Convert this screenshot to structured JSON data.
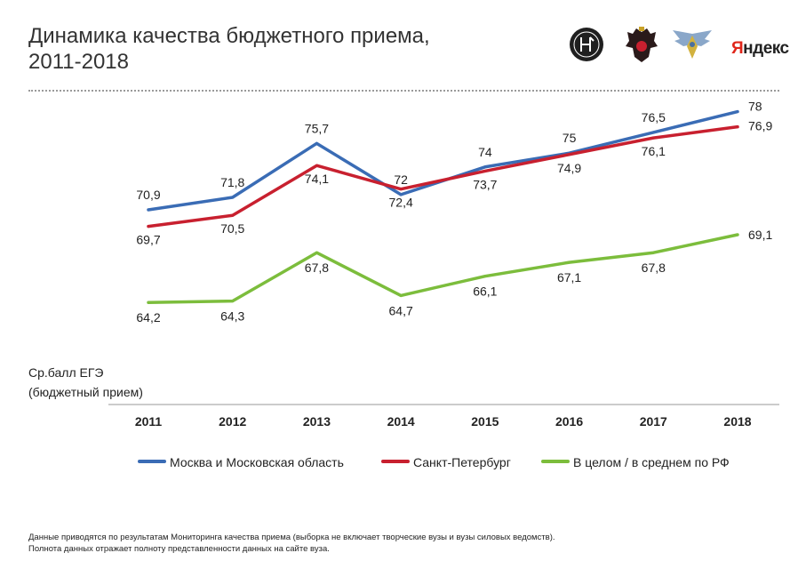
{
  "header": {
    "title_line1": "Динамика качества бюджетного приема,",
    "title_line2": "2011-2018",
    "logos": [
      {
        "name": "hse-logo",
        "icon": "circular-emblem-icon"
      },
      {
        "name": "minobrnauki-logo",
        "icon": "double-headed-eagle-icon"
      },
      {
        "name": "rosobrnadzor-logo",
        "icon": "winged-emblem-icon"
      },
      {
        "name": "yandex-logo",
        "text_first": "Я",
        "text_rest": "ндекс"
      }
    ]
  },
  "y_label_line1": "Ср.балл ЕГЭ",
  "y_label_line2": "(бюджетный прием)",
  "footnote_line1": "Данные приводятся по результатам Мониторинга качества приема (выборка не включает творческие вузы и вузы силовых ведомств).",
  "footnote_line2": "Полнота данных отражает полноту представленности данных на сайте вуза.",
  "chart_data": {
    "type": "line",
    "title": "Динамика качества бюджетного приема, 2011-2018",
    "ylabel": "Ср.балл ЕГЭ (бюджетный прием)",
    "xlabel": "",
    "x": [
      "2011",
      "2012",
      "2013",
      "2014",
      "2015",
      "2016",
      "2017",
      "2018"
    ],
    "ylim": [
      61,
      79
    ],
    "grid": false,
    "legend": "bottom",
    "series": [
      {
        "name": "Москва и Московская область",
        "color": "#3a6cb5",
        "values": [
          70.9,
          71.8,
          75.7,
          72,
          74,
          75,
          76.5,
          78
        ],
        "value_labels": [
          "70,9",
          "71,8",
          "75,7",
          "72",
          "74",
          "75",
          "76,5",
          "78"
        ]
      },
      {
        "name": "Санкт-Петербург",
        "color": "#c8202f",
        "values": [
          69.7,
          70.5,
          74.1,
          72.4,
          73.7,
          74.9,
          76.1,
          76.9
        ],
        "value_labels": [
          "69,7",
          "70,5",
          "74,1",
          "72,4",
          "73,7",
          "74,9",
          "76,1",
          "76,9"
        ]
      },
      {
        "name": "В целом / в среднем по РФ",
        "color": "#7cbd3c",
        "values": [
          64.2,
          64.3,
          67.8,
          64.7,
          66.1,
          67.1,
          67.8,
          69.1
        ],
        "value_labels": [
          "64,2",
          "64,3",
          "67,8",
          "64,7",
          "66,1",
          "67,1",
          "67,8",
          "69,1"
        ]
      }
    ]
  }
}
